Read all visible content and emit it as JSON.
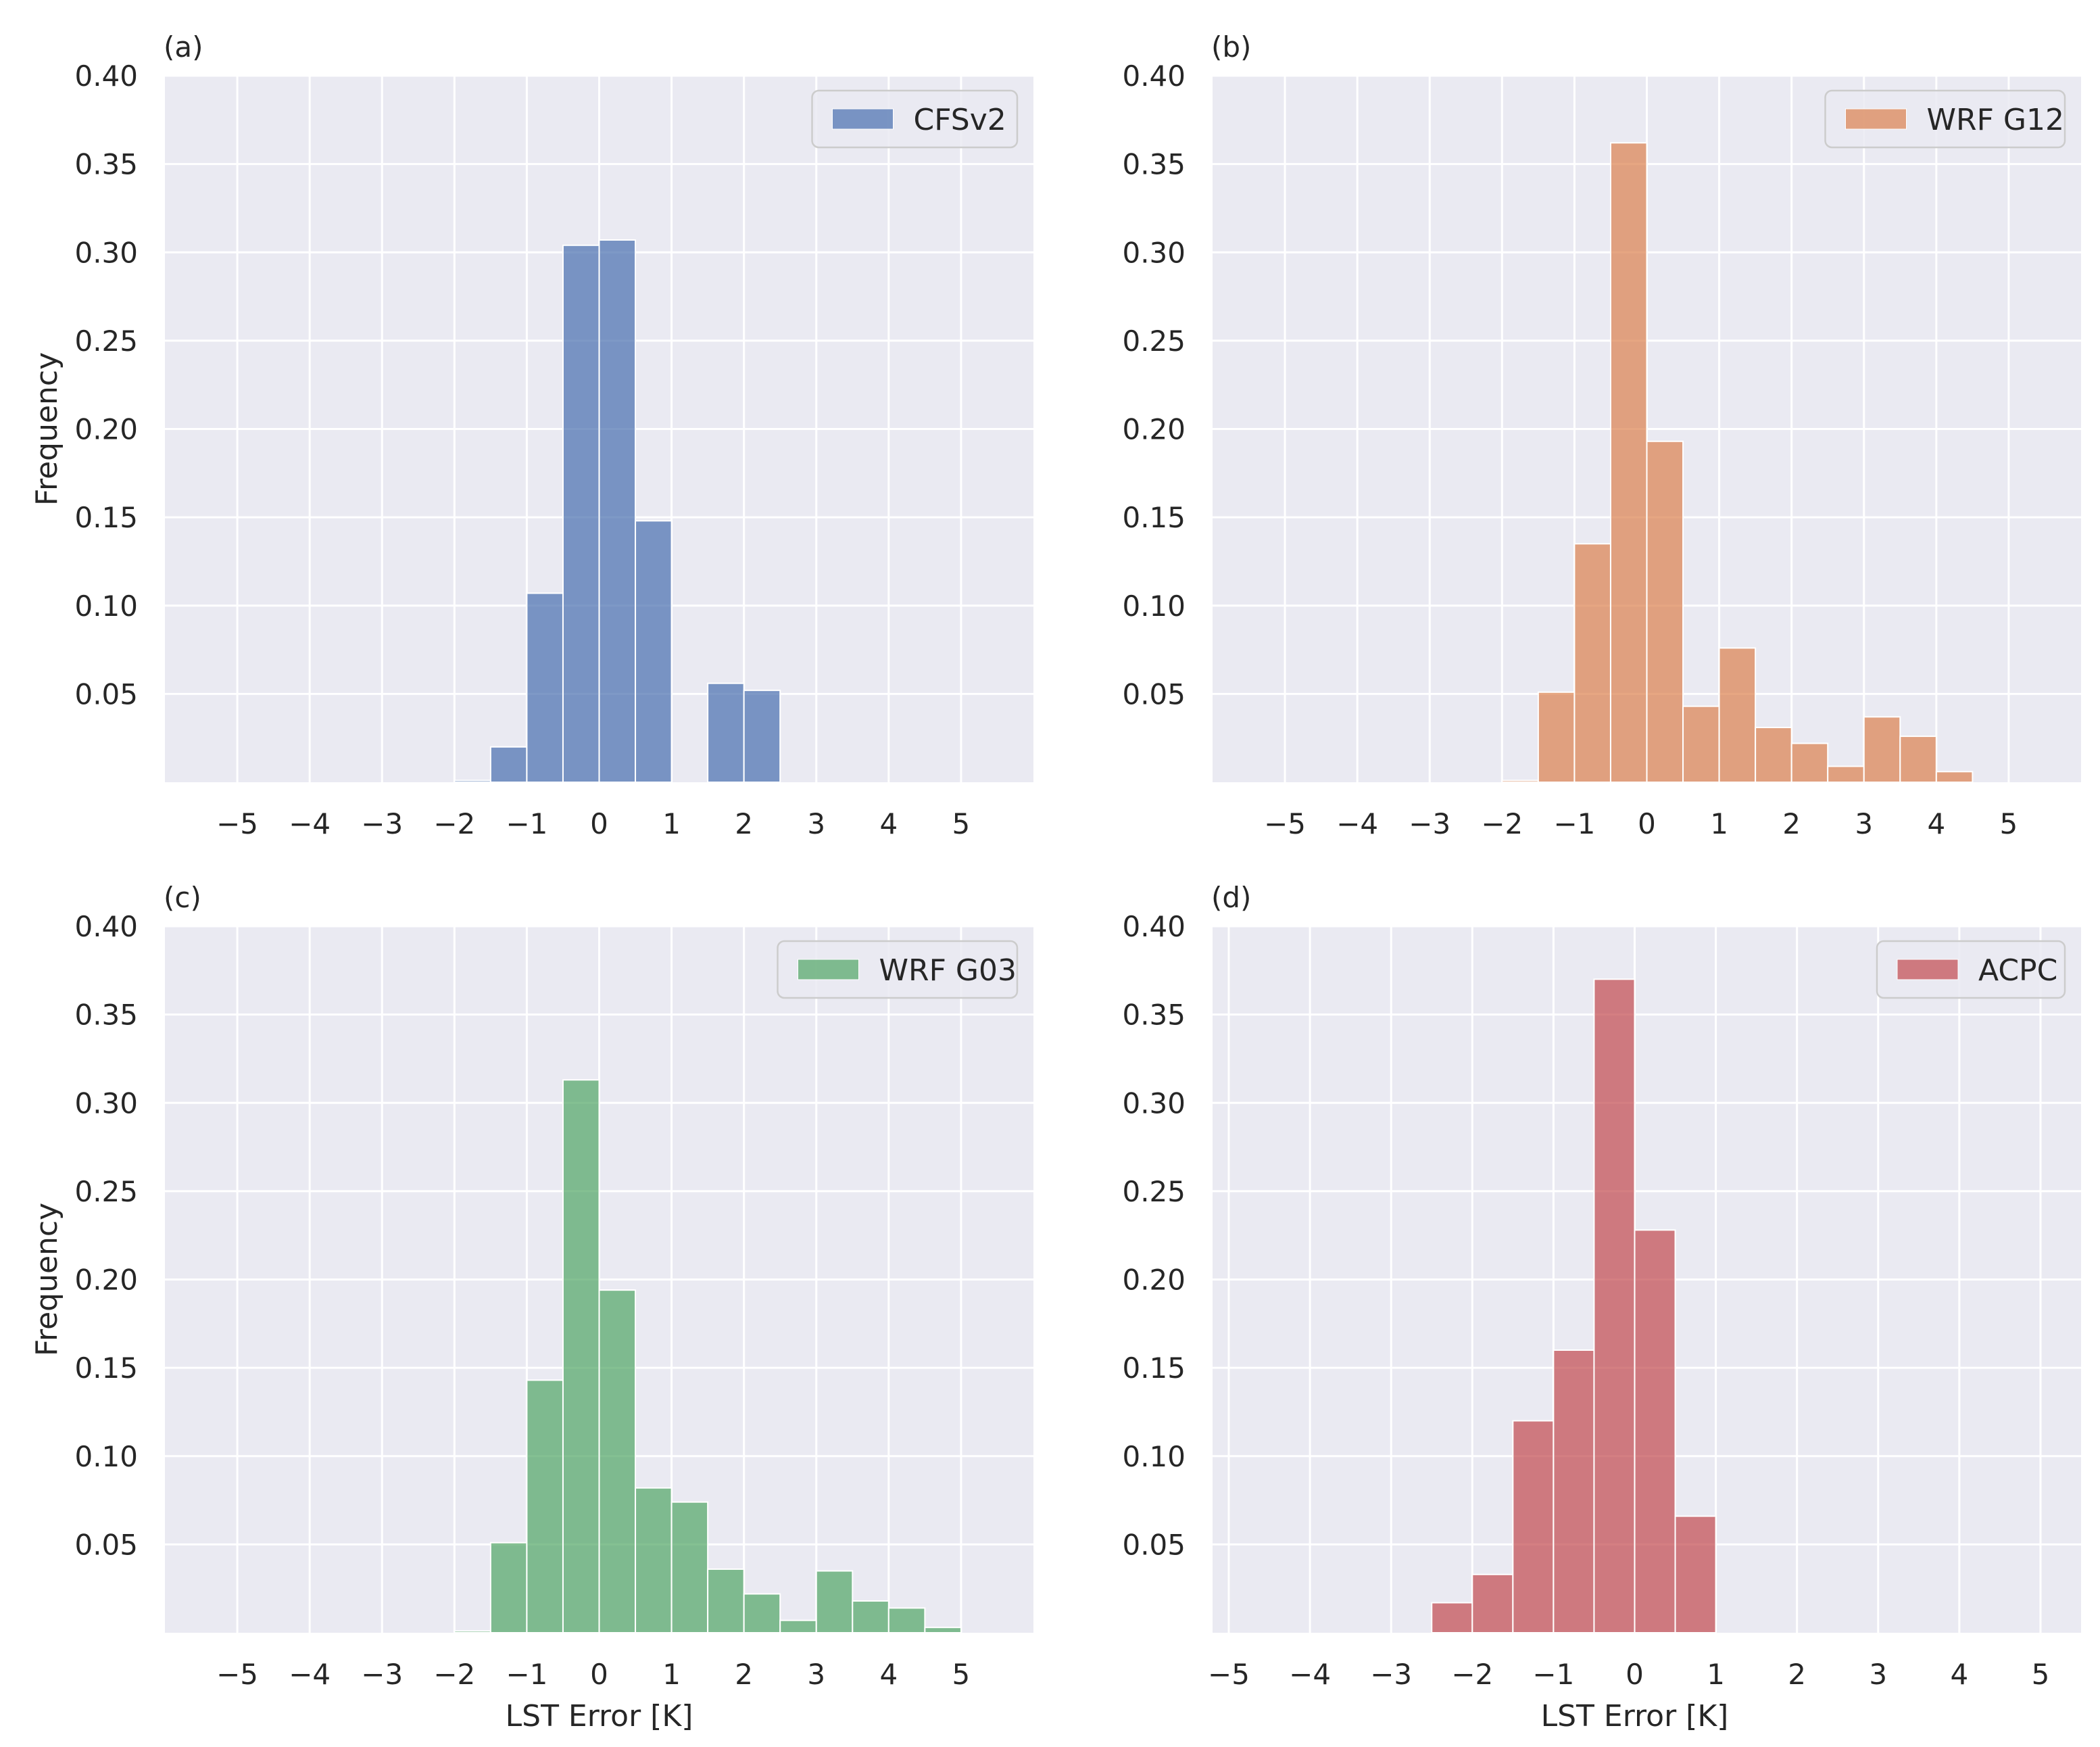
{
  "chart_data": [
    {
      "panel": "(a)",
      "type": "bar",
      "histogram": true,
      "legend": "CFSv2",
      "legend_position": "top-right",
      "color": "#4c72b0",
      "xlabel": "",
      "ylabel": "Frequency",
      "xlim": [
        -6,
        6
      ],
      "ylim": [
        0,
        0.4
      ],
      "xticks": [
        -5,
        -4,
        -3,
        -2,
        -1,
        0,
        1,
        2,
        3,
        4,
        5
      ],
      "xtick_labels": [
        "−5",
        "−4",
        "−3",
        "−2",
        "−1",
        "0",
        "1",
        "2",
        "3",
        "4",
        "5"
      ],
      "yticks": [
        0.05,
        0.1,
        0.15,
        0.2,
        0.25,
        0.3,
        0.35,
        0.4
      ],
      "ytick_labels": [
        "0.05",
        "0.10",
        "0.15",
        "0.20",
        "0.25",
        "0.30",
        "0.35",
        "0.40"
      ],
      "grid": true,
      "bin_width": 0.5,
      "bin_starts": [
        -2,
        -1.5,
        -1,
        -0.5,
        0,
        0.5,
        1,
        1.5,
        2
      ],
      "values": [
        0.001,
        0.02,
        0.107,
        0.304,
        0.307,
        0.148,
        0,
        0.056,
        0.052
      ]
    },
    {
      "panel": "(b)",
      "type": "bar",
      "histogram": true,
      "legend": "WRF G12",
      "legend_position": "top-right",
      "color": "#dd8452",
      "xlabel": "",
      "ylabel": "",
      "xlim": [
        -6,
        6
      ],
      "ylim": [
        0,
        0.4
      ],
      "xticks": [
        -5,
        -4,
        -3,
        -2,
        -1,
        0,
        1,
        2,
        3,
        4,
        5
      ],
      "xtick_labels": [
        "−5",
        "−4",
        "−3",
        "−2",
        "−1",
        "0",
        "1",
        "2",
        "3",
        "4",
        "5"
      ],
      "yticks": [
        0.05,
        0.1,
        0.15,
        0.2,
        0.25,
        0.3,
        0.35,
        0.4
      ],
      "ytick_labels": [
        "0.05",
        "0.10",
        "0.15",
        "0.20",
        "0.25",
        "0.30",
        "0.35",
        "0.40"
      ],
      "grid": true,
      "bin_width": 0.5,
      "bin_starts": [
        -2,
        -1.5,
        -1,
        -0.5,
        0,
        0.5,
        1,
        1.5,
        2,
        2.5,
        3,
        3.5,
        4
      ],
      "values": [
        0.001,
        0.051,
        0.135,
        0.362,
        0.193,
        0.043,
        0.076,
        0.031,
        0.022,
        0.009,
        0.037,
        0.026,
        0.006
      ]
    },
    {
      "panel": "(c)",
      "type": "bar",
      "histogram": true,
      "legend": "WRF G03",
      "legend_position": "top-right",
      "color": "#55a868",
      "xlabel": "LST Error [K]",
      "ylabel": "Frequency",
      "xlim": [
        -6,
        6
      ],
      "ylim": [
        0,
        0.4
      ],
      "xticks": [
        -5,
        -4,
        -3,
        -2,
        -1,
        0,
        1,
        2,
        3,
        4,
        5
      ],
      "xtick_labels": [
        "−5",
        "−4",
        "−3",
        "−2",
        "−1",
        "0",
        "1",
        "2",
        "3",
        "4",
        "5"
      ],
      "yticks": [
        0.05,
        0.1,
        0.15,
        0.2,
        0.25,
        0.3,
        0.35,
        0.4
      ],
      "ytick_labels": [
        "0.05",
        "0.10",
        "0.15",
        "0.20",
        "0.25",
        "0.30",
        "0.35",
        "0.40"
      ],
      "grid": true,
      "bin_width": 0.5,
      "bin_starts": [
        -2,
        -1.5,
        -1,
        -0.5,
        0,
        0.5,
        1,
        1.5,
        2,
        2.5,
        3,
        3.5,
        4,
        4.5
      ],
      "values": [
        0.001,
        0.051,
        0.143,
        0.313,
        0.194,
        0.082,
        0.074,
        0.036,
        0.022,
        0.007,
        0.035,
        0.018,
        0.014,
        0.003
      ]
    },
    {
      "panel": "(d)",
      "type": "bar",
      "histogram": true,
      "legend": "ACPC",
      "legend_position": "top-right",
      "color": "#c44e52",
      "xlabel": "LST Error [K]",
      "ylabel": "",
      "xlim": [
        -5.2,
        5.5
      ],
      "ylim": [
        0,
        0.4
      ],
      "xticks": [
        -5,
        -4,
        -3,
        -2,
        -1,
        0,
        1,
        2,
        3,
        4,
        5
      ],
      "xtick_labels": [
        "−5",
        "−4",
        "−3",
        "−2",
        "−1",
        "0",
        "1",
        "2",
        "3",
        "4",
        "5"
      ],
      "yticks": [
        0.05,
        0.1,
        0.15,
        0.2,
        0.25,
        0.3,
        0.35,
        0.4
      ],
      "ytick_labels": [
        "0.05",
        "0.10",
        "0.15",
        "0.20",
        "0.25",
        "0.30",
        "0.35",
        "0.40"
      ],
      "grid": true,
      "bin_width": 0.5,
      "bin_starts": [
        -2.5,
        -2,
        -1.5,
        -1,
        -0.5,
        0,
        0.5
      ],
      "values": [
        0.017,
        0.033,
        0.12,
        0.16,
        0.37,
        0.228,
        0.066
      ]
    }
  ]
}
